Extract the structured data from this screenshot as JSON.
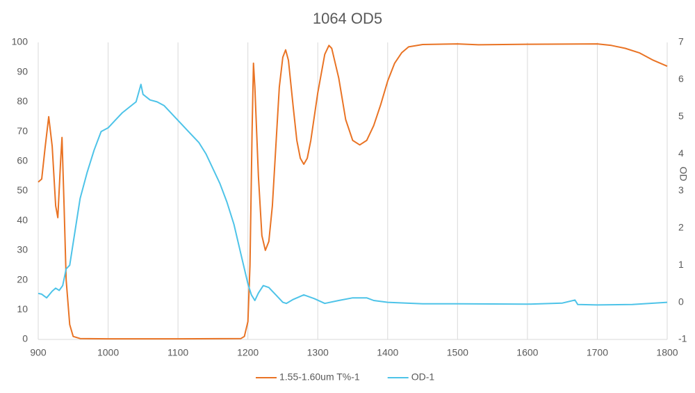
{
  "chart_data": {
    "type": "line",
    "title": "1064 OD5",
    "y2label": "OD",
    "xlim": [
      900,
      1800
    ],
    "xticks": [
      900,
      1000,
      1100,
      1200,
      1300,
      1400,
      1500,
      1600,
      1700,
      1800
    ],
    "ylim": [
      0,
      100
    ],
    "yticks": [
      0,
      10,
      20,
      30,
      40,
      50,
      60,
      70,
      80,
      90,
      100
    ],
    "y2lim": [
      -1,
      7
    ],
    "y2ticks": [
      -1,
      0,
      1,
      2,
      3,
      4,
      5,
      6,
      7
    ],
    "xgrid": true,
    "ygrid": false,
    "legend": "bottom",
    "series": [
      {
        "name": "1.55-1.60um T%-1",
        "color": "#e97324",
        "axis": "y",
        "x": [
          900,
          905,
          910,
          915,
          920,
          925,
          928,
          932,
          934,
          937,
          940,
          945,
          950,
          960,
          1000,
          1100,
          1190,
          1195,
          1200,
          1203,
          1206,
          1208,
          1210,
          1215,
          1220,
          1225,
          1230,
          1235,
          1240,
          1245,
          1250,
          1254,
          1258,
          1265,
          1270,
          1275,
          1280,
          1285,
          1290,
          1300,
          1310,
          1316,
          1320,
          1330,
          1340,
          1350,
          1360,
          1370,
          1380,
          1390,
          1400,
          1410,
          1420,
          1430,
          1450,
          1500,
          1530,
          1600,
          1700,
          1720,
          1740,
          1760,
          1780,
          1800
        ],
        "values": [
          53,
          54,
          65,
          75,
          65,
          45,
          41,
          60,
          68,
          45,
          20,
          5,
          1,
          0.3,
          0.2,
          0.2,
          0.3,
          1,
          6,
          25,
          70,
          93,
          85,
          55,
          35,
          30,
          33,
          45,
          65,
          85,
          95,
          97.5,
          94,
          78,
          67,
          61,
          59,
          61,
          67,
          83,
          96,
          99,
          98,
          88,
          74,
          67,
          65.5,
          67,
          72,
          79,
          87,
          93,
          96.5,
          98.5,
          99.3,
          99.5,
          99.2,
          99.4,
          99.5,
          99,
          98,
          96.5,
          94,
          92
        ]
      },
      {
        "name": "OD-1",
        "color": "#4dc3e8",
        "axis": "y2",
        "x": [
          900,
          905,
          912,
          920,
          925,
          930,
          935,
          940,
          945,
          950,
          960,
          970,
          980,
          990,
          1000,
          1010,
          1020,
          1030,
          1040,
          1047,
          1050,
          1060,
          1070,
          1080,
          1090,
          1100,
          1110,
          1120,
          1130,
          1140,
          1150,
          1160,
          1170,
          1180,
          1190,
          1200,
          1205,
          1210,
          1215,
          1222,
          1230,
          1240,
          1250,
          1255,
          1265,
          1280,
          1295,
          1310,
          1330,
          1350,
          1370,
          1380,
          1400,
          1450,
          1500,
          1600,
          1650,
          1668,
          1672,
          1700,
          1750,
          1800
        ],
        "values": [
          0.24,
          0.22,
          0.12,
          0.3,
          0.38,
          0.32,
          0.45,
          0.9,
          1.0,
          1.6,
          2.8,
          3.5,
          4.1,
          4.6,
          4.7,
          4.9,
          5.1,
          5.25,
          5.4,
          5.87,
          5.6,
          5.45,
          5.4,
          5.3,
          5.1,
          4.9,
          4.7,
          4.5,
          4.3,
          4.0,
          3.6,
          3.2,
          2.7,
          2.1,
          1.3,
          0.5,
          0.2,
          0.05,
          0.25,
          0.45,
          0.4,
          0.2,
          0.0,
          -0.03,
          0.08,
          0.2,
          0.1,
          -0.03,
          0.05,
          0.12,
          0.12,
          0.05,
          0.0,
          -0.04,
          -0.04,
          -0.05,
          -0.02,
          0.06,
          -0.06,
          -0.07,
          -0.06,
          0.0
        ]
      }
    ]
  }
}
